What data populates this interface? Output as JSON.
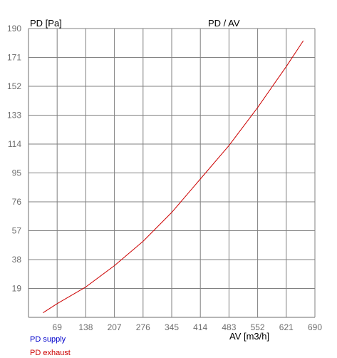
{
  "chart_data": {
    "type": "line",
    "title": "PD / AV",
    "ylabel": "PD [Pa]",
    "xlabel": "AV [m3/h]",
    "x_ticks": [
      69,
      138,
      207,
      276,
      345,
      414,
      483,
      552,
      621,
      690
    ],
    "y_ticks": [
      19,
      38,
      57,
      76,
      95,
      114,
      133,
      152,
      171,
      190
    ],
    "xlim": [
      0,
      690
    ],
    "ylim": [
      0,
      190
    ],
    "grid": true,
    "legend_position": "bottom-left",
    "series": [
      {
        "name": "PD supply",
        "color": "#0000cc",
        "x": [],
        "y": []
      },
      {
        "name": "PD exhaust",
        "color": "#cc0000",
        "x": [
          35,
          69,
          138,
          207,
          276,
          345,
          414,
          483,
          552,
          621,
          662
        ],
        "y": [
          3,
          9,
          20,
          34,
          50,
          69,
          91,
          113,
          138,
          165,
          182
        ]
      }
    ]
  }
}
